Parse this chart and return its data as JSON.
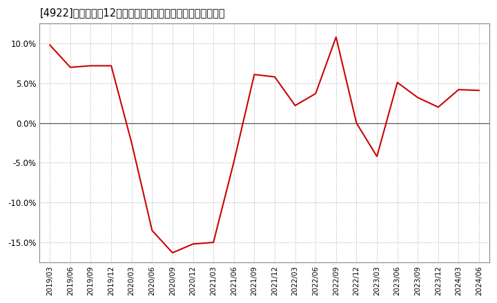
{
  "title": "[4922]　売上高の12か月移動合計の対前年同期増減率の推移",
  "x_labels": [
    "2019/03",
    "2019/06",
    "2019/09",
    "2019/12",
    "2020/03",
    "2020/06",
    "2020/09",
    "2020/12",
    "2021/03",
    "2021/06",
    "2021/09",
    "2021/12",
    "2022/03",
    "2022/06",
    "2022/09",
    "2022/12",
    "2023/03",
    "2023/06",
    "2023/09",
    "2023/12",
    "2024/03",
    "2024/06"
  ],
  "values": [
    9.8,
    7.0,
    7.2,
    7.2,
    -2.5,
    -13.5,
    -16.3,
    -15.2,
    -15.0,
    -4.9,
    6.1,
    5.8,
    2.2,
    3.7,
    10.8,
    0.0,
    -4.2,
    5.1,
    3.2,
    2.0,
    4.2,
    4.1
  ],
  "line_color": "#cc0000",
  "background_color": "#ffffff",
  "plot_bg_color": "#ffffff",
  "grid_color": "#aaaaaa",
  "ylim": [
    -17.5,
    12.5
  ],
  "yticks": [
    -15.0,
    -10.0,
    -5.0,
    0.0,
    5.0,
    10.0
  ],
  "title_fontsize": 10.5
}
